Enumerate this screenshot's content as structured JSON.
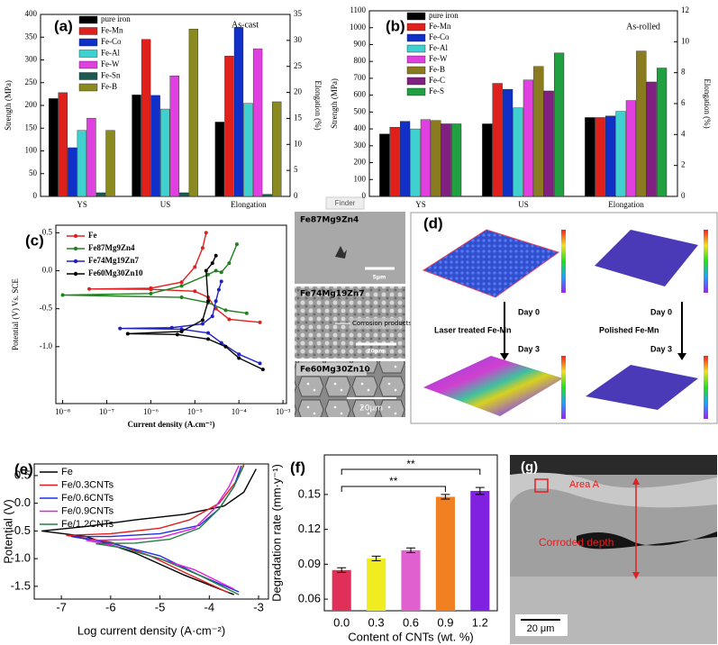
{
  "chart_data": [
    {
      "type": "bar",
      "label": "(a)",
      "annotation": "As-cast",
      "ylabel": "Strength (MPa)",
      "y2label": "Elongation (%)",
      "categories": [
        "YS",
        "US",
        "Elongation"
      ],
      "category_axes": [
        "y",
        "y",
        "y2"
      ],
      "ylim": [
        0,
        400
      ],
      "yticks": [
        0,
        50,
        100,
        150,
        200,
        250,
        300,
        350,
        400
      ],
      "y2lim": [
        0,
        35
      ],
      "y2ticks": [
        0,
        5,
        10,
        15,
        20,
        25,
        30,
        35
      ],
      "series": [
        {
          "name": "pure iron",
          "color": "#000000",
          "values": [
            215,
            223,
            14.3
          ]
        },
        {
          "name": "Fe-Mn",
          "color": "#e0201b",
          "values": [
            228,
            345,
            27
          ]
        },
        {
          "name": "Fe-Co",
          "color": "#1030c8",
          "values": [
            107,
            222,
            32.5
          ]
        },
        {
          "name": "Fe-Al",
          "color": "#40d0d0",
          "values": [
            145,
            192,
            17.9
          ]
        },
        {
          "name": "Fe-W",
          "color": "#e040e0",
          "values": [
            172,
            265,
            28.4
          ]
        },
        {
          "name": "Fe-Sn",
          "color": "#1a5a50",
          "values": [
            8,
            8,
            0.4
          ]
        },
        {
          "name": "Fe-B",
          "color": "#8a8a20",
          "values": [
            145,
            368,
            18.2
          ]
        }
      ]
    },
    {
      "type": "bar",
      "label": "(b)",
      "annotation": "As-rolled",
      "ylabel": "Strength (MPa)",
      "y2label": "Elongation (%)",
      "categories": [
        "YS",
        "US",
        "Elongation"
      ],
      "category_axes": [
        "y",
        "y",
        "y2"
      ],
      "ylim": [
        0,
        1100
      ],
      "yticks": [
        0,
        100,
        200,
        300,
        400,
        500,
        600,
        700,
        800,
        900,
        1000,
        1100
      ],
      "y2lim": [
        0,
        12
      ],
      "y2ticks": [
        0,
        2,
        4,
        6,
        8,
        10,
        12
      ],
      "series": [
        {
          "name": "pure iron",
          "color": "#000000",
          "values": [
            370,
            430,
            5.1
          ]
        },
        {
          "name": "Fe-Mn",
          "color": "#e0201b",
          "values": [
            410,
            670,
            5.1
          ]
        },
        {
          "name": "Fe-Co",
          "color": "#1030c8",
          "values": [
            445,
            635,
            5.2
          ]
        },
        {
          "name": "Fe-Al",
          "color": "#40d0d0",
          "values": [
            400,
            525,
            5.5
          ]
        },
        {
          "name": "Fe-W",
          "color": "#e040e0",
          "values": [
            455,
            690,
            6.2
          ]
        },
        {
          "name": "Fe-B",
          "color": "#8a7a20",
          "values": [
            450,
            770,
            9.4
          ]
        },
        {
          "name": "Fe-C",
          "color": "#802080",
          "values": [
            430,
            625,
            7.4
          ]
        },
        {
          "name": "Fe-S",
          "color": "#20a040",
          "values": [
            430,
            850,
            8.3
          ]
        }
      ]
    },
    {
      "type": "line",
      "label": "(c)",
      "xlabel": "Current density (A.cm⁻²)",
      "ylabel": "Potential (V) Vs. SCE",
      "xscale": "log",
      "markers": true,
      "xlim": [
        7e-09,
        0.0012
      ],
      "xticks": [
        {
          "value": 1e-08,
          "label": "10⁻⁸"
        },
        {
          "value": 1e-07,
          "label": "10⁻⁷"
        },
        {
          "value": 1e-06,
          "label": "10⁻⁶"
        },
        {
          "value": 1e-05,
          "label": "10⁻⁵"
        },
        {
          "value": 0.0001,
          "label": "10⁻⁴"
        },
        {
          "value": 0.001,
          "label": "10⁻³"
        }
      ],
      "ylim": [
        -1.75,
        0.6
      ],
      "yticks": [
        {
          "value": -1.0,
          "label": "-1.0"
        },
        -0.5,
        {
          "value": 0,
          "label": "0.0"
        },
        0.5
      ],
      "series": [
        {
          "name": "Fe",
          "color": "#e02020",
          "x": [
            0.0003,
            6e-05,
            3e-05,
            2e-05,
            1e-05,
            1e-06,
            4e-08,
            1e-06,
            5e-06,
            1e-05,
            1.5e-05,
            1.8e-05
          ],
          "values": [
            -0.68,
            -0.64,
            -0.5,
            -0.35,
            -0.27,
            -0.245,
            -0.24,
            -0.23,
            -0.15,
            0.05,
            0.3,
            0.5
          ]
        },
        {
          "name": "Fe87Mg9Zn4",
          "color": "#208020",
          "x": [
            0.00015,
            5e-05,
            2e-05,
            5e-06,
            1e-08,
            1e-06,
            5e-06,
            2e-05,
            3e-05,
            4e-05,
            6e-05,
            9e-05
          ],
          "values": [
            -0.56,
            -0.52,
            -0.42,
            -0.35,
            -0.32,
            -0.3,
            -0.2,
            -0.05,
            0.0,
            -0.02,
            0.1,
            0.35
          ]
        },
        {
          "name": "Fe74Mg19Zn7",
          "color": "#2020c0",
          "x": [
            0.0003,
            0.0001,
            4e-05,
            2e-05,
            5e-06,
            2e-07,
            3e-06,
            1.5e-05,
            2.5e-05,
            3e-05,
            3.5e-05,
            4e-05
          ],
          "values": [
            -1.22,
            -1.1,
            -0.95,
            -0.82,
            -0.77,
            -0.76,
            -0.75,
            -0.7,
            -0.6,
            -0.4,
            -0.25,
            -0.14
          ]
        },
        {
          "name": "Fe60Mg30Zn10",
          "color": "#000000",
          "x": [
            0.00035,
            0.0001,
            5e-05,
            2e-05,
            4e-06,
            3e-07,
            5e-06,
            1.5e-05,
            2e-05,
            1.8e-05,
            2.5e-05,
            3e-05
          ],
          "values": [
            -1.3,
            -1.15,
            -1.0,
            -0.9,
            -0.84,
            -0.83,
            -0.8,
            -0.65,
            -0.4,
            0.0,
            0.1,
            0.2
          ]
        }
      ]
    },
    {
      "type": "line",
      "label": "(e)",
      "xlabel": "Log current density (A·cm⁻²)",
      "ylabel": "Potential (V)",
      "xlim": [
        -7.55,
        -2.8
      ],
      "xticks": [
        -7,
        -6,
        -5,
        -4,
        -3
      ],
      "ylim": [
        -1.73,
        0.71
      ],
      "yticks": [
        -1.5,
        {
          "value": -1.0,
          "label": "-1.0"
        },
        -0.5,
        {
          "value": 0,
          "label": "0.0"
        },
        0.5
      ],
      "series": [
        {
          "name": "Fe",
          "color": "#000000",
          "x": [
            -3.5,
            -4.5,
            -5.5,
            -6.5,
            -7.4,
            -6.5,
            -5.5,
            -4.5,
            -3.7,
            -3.3,
            -3.05
          ],
          "values": [
            -1.65,
            -1.3,
            -0.9,
            -0.6,
            -0.5,
            -0.42,
            -0.3,
            -0.2,
            -0.05,
            0.2,
            0.62
          ]
        },
        {
          "name": "Fe/0.3CNTs",
          "color": "#e02020",
          "x": [
            -3.6,
            -4.5,
            -5.2,
            -6.0,
            -6.9,
            -6.0,
            -5.0,
            -4.4,
            -3.8,
            -3.45,
            -3.3
          ],
          "values": [
            -1.62,
            -1.25,
            -0.95,
            -0.7,
            -0.58,
            -0.55,
            -0.45,
            -0.3,
            0.0,
            0.4,
            0.7
          ]
        },
        {
          "name": "Fe/0.6CNTs",
          "color": "#2030e0",
          "x": [
            -3.4,
            -4.2,
            -5.0,
            -6.0,
            -6.8,
            -6.0,
            -5.0,
            -4.2,
            -3.8,
            -3.5,
            -3.35
          ],
          "values": [
            -1.6,
            -1.3,
            -0.95,
            -0.72,
            -0.6,
            -0.6,
            -0.55,
            -0.4,
            -0.1,
            0.3,
            0.68
          ]
        },
        {
          "name": "Fe/0.9CNTs",
          "color": "#e020e0",
          "x": [
            -3.5,
            -4.3,
            -5.2,
            -6.0,
            -6.5,
            -5.8,
            -5.0,
            -4.3,
            -3.9,
            -3.6,
            -3.4
          ],
          "values": [
            -1.55,
            -1.2,
            -0.95,
            -0.75,
            -0.67,
            -0.66,
            -0.62,
            -0.45,
            -0.1,
            0.3,
            0.68
          ]
        },
        {
          "name": "Fe/1.2CNTs",
          "color": "#208040",
          "x": [
            -3.4,
            -4.2,
            -5.0,
            -5.8,
            -6.3,
            -5.5,
            -4.8,
            -4.2,
            -3.8,
            -3.5,
            -3.3
          ],
          "values": [
            -1.65,
            -1.3,
            -1.0,
            -0.8,
            -0.73,
            -0.72,
            -0.65,
            -0.45,
            -0.1,
            0.3,
            0.68
          ]
        }
      ]
    },
    {
      "type": "bar",
      "label": "(f)",
      "xlabel": "Content of CNTs (wt. %)",
      "ylabel": "Degradation rate (mm·y⁻¹)",
      "categories": [
        "0.0",
        "0.3",
        "0.6",
        "0.9",
        "1.2"
      ],
      "values": [
        0.085,
        0.095,
        0.102,
        0.148,
        0.153
      ],
      "errors": [
        0.002,
        0.002,
        0.002,
        0.002,
        0.003
      ],
      "colors": [
        "#e0305a",
        "#f0ec20",
        "#e060d0",
        "#f08020",
        "#8020e0"
      ],
      "ylim": [
        0.05,
        0.184
      ],
      "yticks": [
        0.06,
        0.09,
        0.12,
        0.15
      ],
      "annotations": [
        "**",
        "**"
      ]
    }
  ],
  "finder_tab": "Finder",
  "panel_c_images": [
    {
      "label": "Fe87Mg9Zn4",
      "scale": "5μm"
    },
    {
      "label": "Fe74Mg19Zn7",
      "note": "Corrosion products",
      "scale": "20μm"
    },
    {
      "label": "Fe60Mg30Zn10",
      "scale": "20μm"
    }
  ],
  "panel_d": {
    "label": "(d)",
    "left": "Laser treated Fe-Mn",
    "right": "Polished Fe-Mn",
    "day_start": "Day 0",
    "day_end": "Day 3"
  },
  "panel_g": {
    "label": "(g)",
    "area": "Area A",
    "depth": "Corroded depth",
    "scale": "20 μm"
  }
}
